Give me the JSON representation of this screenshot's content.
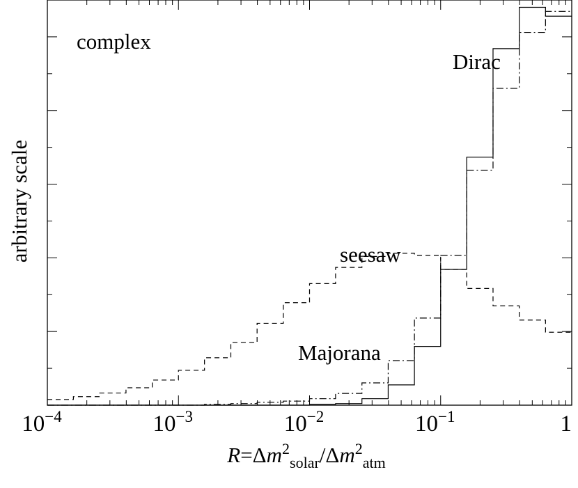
{
  "chart_data": {
    "type": "step",
    "x_scale": "log10",
    "xlim": [
      0.0001,
      1
    ],
    "ylim": [
      0,
      1
    ],
    "y_ticks": "unlabeled",
    "x_tick_labels": [
      {
        "value": 0.0001,
        "base": "10",
        "exp": "−4"
      },
      {
        "value": 0.001,
        "base": "10",
        "exp": "−3"
      },
      {
        "value": 0.01,
        "base": "10",
        "exp": "−2"
      },
      {
        "value": 0.1,
        "base": "10",
        "exp": "−1"
      },
      {
        "value": 1,
        "base": "1",
        "exp": ""
      }
    ],
    "ylabel": "arbitrary scale",
    "xlabel": {
      "R": "R",
      "eq": "=Δ",
      "m1": "m",
      "sq1": "2",
      "sub1": "solar",
      "slash": "/Δ",
      "m2": "m",
      "sq2": "2",
      "sub2": "atm"
    },
    "corner_label": "complex",
    "bin_edges": [
      0.0001,
      0.000158,
      0.000251,
      0.000398,
      0.000631,
      0.001,
      0.00158,
      0.00251,
      0.00398,
      0.00631,
      0.01,
      0.0158,
      0.0251,
      0.0398,
      0.0631,
      0.1,
      0.158,
      0.251,
      0.398,
      0.631,
      1
    ],
    "series": [
      {
        "name": "Dirac",
        "style": "solid",
        "values": [
          0,
          0,
          0,
          0,
          0,
          0,
          0,
          0,
          0,
          0,
          0.002,
          0.004,
          0.016,
          0.05,
          0.145,
          0.335,
          0.612,
          0.88,
          0.982,
          0.96
        ]
      },
      {
        "name": "seesaw",
        "style": "dashed",
        "values": [
          0.014,
          0.021,
          0.03,
          0.043,
          0.062,
          0.086,
          0.117,
          0.155,
          0.202,
          0.253,
          0.3,
          0.34,
          0.367,
          0.375,
          0.37,
          0.335,
          0.288,
          0.245,
          0.21,
          0.18
        ]
      },
      {
        "name": "Majorana",
        "style": "dash-dot",
        "values": [
          0,
          0,
          0,
          0,
          0,
          0,
          0.002,
          0.004,
          0.007,
          0.01,
          0.016,
          0.029,
          0.055,
          0.11,
          0.215,
          0.37,
          0.58,
          0.782,
          0.92,
          0.972
        ]
      }
    ],
    "annotations": [
      "Dirac",
      "seesaw",
      "Majorana"
    ]
  }
}
